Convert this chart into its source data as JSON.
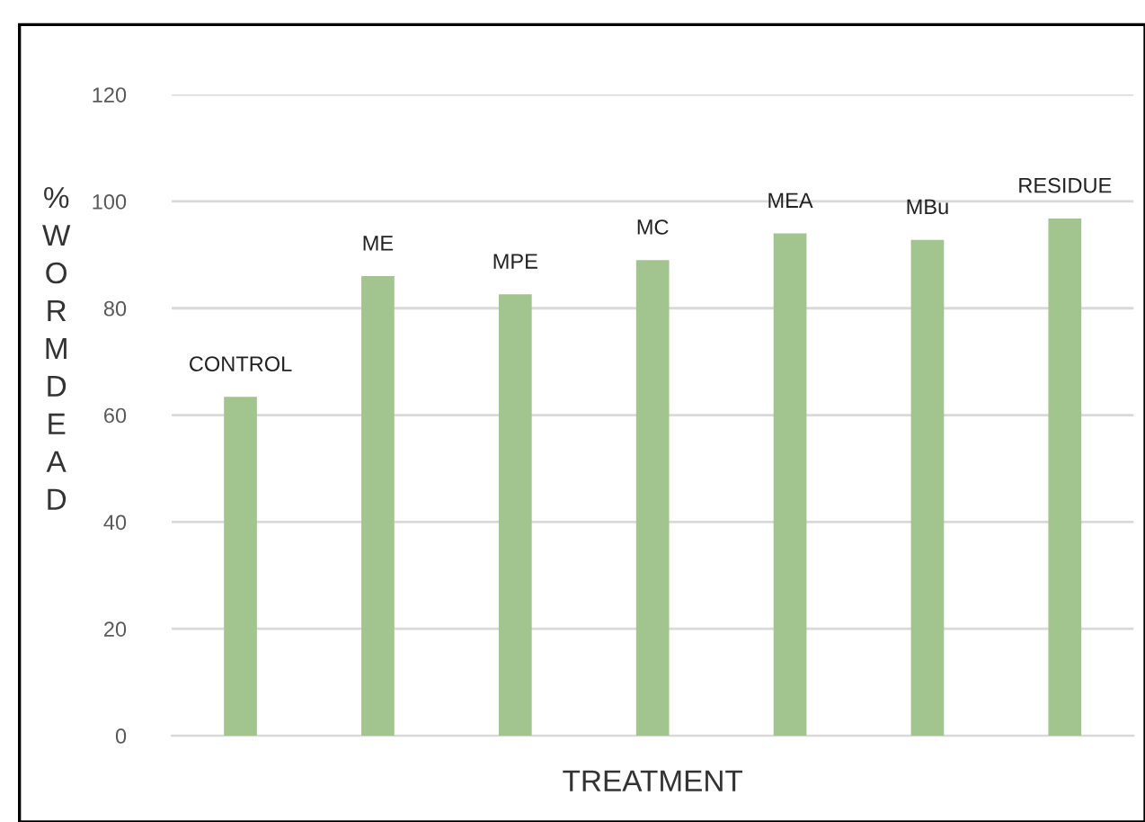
{
  "chart_data": {
    "type": "bar",
    "xlabel": "TREATMENT",
    "ylabel": "%WORMDEAD",
    "categories": [
      "CONTROL",
      "ME",
      "MPE",
      "MC",
      "MEA",
      "MBu",
      "RESIDUE"
    ],
    "values": [
      63.4,
      86,
      82.6,
      89,
      94,
      92.8,
      96.8
    ],
    "color": "#a2c48e",
    "ylim": [
      0,
      120
    ],
    "yticks": [
      0,
      20,
      40,
      60,
      80,
      100,
      120
    ],
    "grid": "y"
  }
}
